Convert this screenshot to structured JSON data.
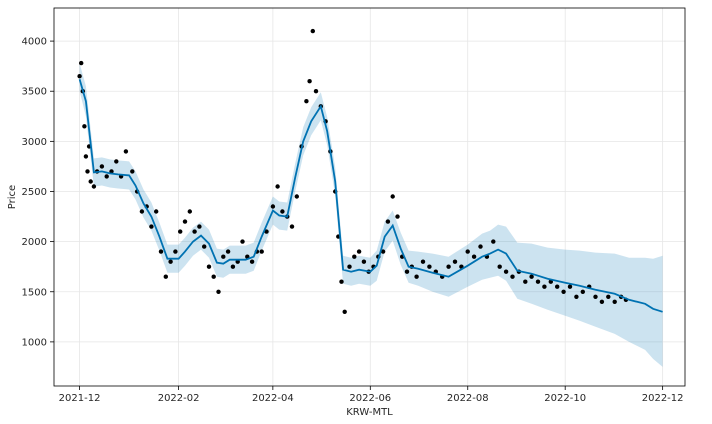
{
  "chart_data": {
    "type": "line",
    "title": "",
    "xlabel": "KRW-MTL",
    "ylabel": "Price",
    "xlim": [
      "2021-11-15",
      "2022-12-15"
    ],
    "ylim": [
      560,
      4330
    ],
    "grid": true,
    "x_ticks": [
      "2021-12",
      "2022-02",
      "2022-04",
      "2022-06",
      "2022-08",
      "2022-10",
      "2022-12"
    ],
    "y_ticks": [
      1000,
      1500,
      2000,
      2500,
      3000,
      3500,
      4000
    ],
    "colors": {
      "observed": "#000000",
      "forecast_line": "#0072B2",
      "interval_fill": "#0072B2"
    },
    "series": [
      {
        "kind": "forecast",
        "x": [
          "2021-12-01",
          "2021-12-05",
          "2021-12-10",
          "2021-12-15",
          "2021-12-20",
          "2021-12-25",
          "2022-01-01",
          "2022-01-05",
          "2022-01-10",
          "2022-01-15",
          "2022-01-20",
          "2022-01-25",
          "2022-02-01",
          "2022-02-05",
          "2022-02-10",
          "2022-02-15",
          "2022-02-20",
          "2022-02-25",
          "2022-03-01",
          "2022-03-05",
          "2022-03-10",
          "2022-03-15",
          "2022-03-20",
          "2022-03-25",
          "2022-04-01",
          "2022-04-05",
          "2022-04-10",
          "2022-04-15",
          "2022-04-20",
          "2022-04-25",
          "2022-05-01",
          "2022-05-05",
          "2022-05-10",
          "2022-05-15",
          "2022-05-20",
          "2022-05-25",
          "2022-06-01",
          "2022-06-05",
          "2022-06-10",
          "2022-06-15",
          "2022-06-20",
          "2022-06-25",
          "2022-07-01",
          "2022-07-10",
          "2022-07-20",
          "2022-08-01",
          "2022-08-10",
          "2022-08-15",
          "2022-08-20",
          "2022-08-25",
          "2022-09-01",
          "2022-09-10",
          "2022-09-20",
          "2022-10-01",
          "2022-10-10",
          "2022-10-20",
          "2022-11-01",
          "2022-11-10",
          "2022-11-15",
          "2022-11-20",
          "2022-11-25",
          "2022-12-01"
        ],
        "yhat": [
          3620,
          3400,
          2690,
          2700,
          2680,
          2670,
          2660,
          2560,
          2380,
          2250,
          2050,
          1830,
          1830,
          1900,
          2000,
          2060,
          1980,
          1790,
          1780,
          1820,
          1820,
          1820,
          1850,
          2050,
          2310,
          2260,
          2250,
          2640,
          3000,
          3200,
          3350,
          3100,
          2600,
          1720,
          1700,
          1720,
          1700,
          1760,
          2050,
          2160,
          1930,
          1750,
          1730,
          1690,
          1650,
          1760,
          1850,
          1880,
          1920,
          1880,
          1710,
          1680,
          1630,
          1590,
          1560,
          1520,
          1480,
          1420,
          1400,
          1380,
          1330,
          1300
        ],
        "yhat_lower": [
          3500,
          3250,
          2550,
          2560,
          2540,
          2530,
          2520,
          2420,
          2240,
          2110,
          1910,
          1690,
          1690,
          1760,
          1860,
          1920,
          1840,
          1650,
          1640,
          1680,
          1680,
          1680,
          1710,
          1910,
          2170,
          2120,
          2110,
          2500,
          2860,
          3060,
          3210,
          2960,
          2460,
          1580,
          1560,
          1580,
          1560,
          1610,
          1900,
          2010,
          1770,
          1590,
          1560,
          1500,
          1450,
          1550,
          1620,
          1640,
          1660,
          1610,
          1430,
          1380,
          1320,
          1260,
          1210,
          1150,
          1080,
          1000,
          960,
          920,
          830,
          750
        ],
        "yhat_upper": [
          3780,
          3550,
          2830,
          2840,
          2820,
          2810,
          2800,
          2700,
          2520,
          2390,
          2190,
          1970,
          1970,
          2040,
          2140,
          2200,
          2120,
          1930,
          1920,
          1960,
          1960,
          1960,
          1990,
          2190,
          2450,
          2400,
          2390,
          2780,
          3140,
          3340,
          3490,
          3240,
          2740,
          1860,
          1840,
          1860,
          1840,
          1910,
          2200,
          2310,
          2090,
          1910,
          1900,
          1880,
          1850,
          1970,
          2080,
          2110,
          2170,
          2150,
          1990,
          1980,
          1940,
          1920,
          1910,
          1890,
          1880,
          1840,
          1840,
          1840,
          1830,
          1860
        ]
      },
      {
        "kind": "observed",
        "x": [
          "2021-12-01",
          "2021-12-02",
          "2021-12-03",
          "2021-12-04",
          "2021-12-05",
          "2021-12-06",
          "2021-12-07",
          "2021-12-08",
          "2021-12-10",
          "2021-12-12",
          "2021-12-15",
          "2021-12-18",
          "2021-12-21",
          "2021-12-24",
          "2021-12-27",
          "2021-12-30",
          "2022-01-03",
          "2022-01-06",
          "2022-01-09",
          "2022-01-12",
          "2022-01-15",
          "2022-01-18",
          "2022-01-21",
          "2022-01-24",
          "2022-01-27",
          "2022-01-30",
          "2022-02-02",
          "2022-02-05",
          "2022-02-08",
          "2022-02-11",
          "2022-02-14",
          "2022-02-17",
          "2022-02-20",
          "2022-02-23",
          "2022-02-26",
          "2022-03-01",
          "2022-03-04",
          "2022-03-07",
          "2022-03-10",
          "2022-03-13",
          "2022-03-16",
          "2022-03-19",
          "2022-03-22",
          "2022-03-25",
          "2022-03-28",
          "2022-04-01",
          "2022-04-04",
          "2022-04-07",
          "2022-04-10",
          "2022-04-13",
          "2022-04-16",
          "2022-04-19",
          "2022-04-22",
          "2022-04-24",
          "2022-04-26",
          "2022-04-28",
          "2022-05-01",
          "2022-05-04",
          "2022-05-07",
          "2022-05-10",
          "2022-05-12",
          "2022-05-14",
          "2022-05-16",
          "2022-05-19",
          "2022-05-22",
          "2022-05-25",
          "2022-05-28",
          "2022-05-31",
          "2022-06-03",
          "2022-06-06",
          "2022-06-09",
          "2022-06-12",
          "2022-06-15",
          "2022-06-18",
          "2022-06-21",
          "2022-06-24",
          "2022-06-27",
          "2022-06-30",
          "2022-07-04",
          "2022-07-08",
          "2022-07-12",
          "2022-07-16",
          "2022-07-20",
          "2022-07-24",
          "2022-07-28",
          "2022-08-01",
          "2022-08-05",
          "2022-08-09",
          "2022-08-13",
          "2022-08-17",
          "2022-08-21",
          "2022-08-25",
          "2022-08-29",
          "2022-09-02",
          "2022-09-06",
          "2022-09-10",
          "2022-09-14",
          "2022-09-18",
          "2022-09-22",
          "2022-09-26",
          "2022-09-30",
          "2022-10-04",
          "2022-10-08",
          "2022-10-12",
          "2022-10-16",
          "2022-10-20",
          "2022-10-24",
          "2022-10-28",
          "2022-11-01",
          "2022-11-05",
          "2022-11-08"
        ],
        "y": [
          3650,
          3780,
          3500,
          3150,
          2850,
          2700,
          2950,
          2600,
          2550,
          2700,
          2750,
          2650,
          2700,
          2800,
          2650,
          2900,
          2700,
          2500,
          2300,
          2350,
          2150,
          2300,
          1900,
          1650,
          1800,
          1900,
          2100,
          2200,
          2300,
          2100,
          2150,
          1950,
          1750,
          1650,
          1500,
          1850,
          1900,
          1750,
          1800,
          2000,
          1850,
          1800,
          1900,
          1900,
          2100,
          2350,
          2550,
          2300,
          2250,
          2150,
          2450,
          2950,
          3400,
          3600,
          4100,
          3500,
          3350,
          3200,
          2900,
          2500,
          2050,
          1600,
          1300,
          1750,
          1850,
          1900,
          1800,
          1700,
          1750,
          1850,
          1900,
          2200,
          2450,
          2250,
          1850,
          1700,
          1750,
          1650,
          1800,
          1750,
          1700,
          1650,
          1750,
          1800,
          1750,
          1900,
          1850,
          1950,
          1850,
          2000,
          1750,
          1700,
          1650,
          1700,
          1600,
          1650,
          1600,
          1550,
          1600,
          1550,
          1500,
          1550,
          1450,
          1500,
          1550,
          1450,
          1400,
          1450,
          1400,
          1450,
          1420
        ]
      }
    ]
  }
}
